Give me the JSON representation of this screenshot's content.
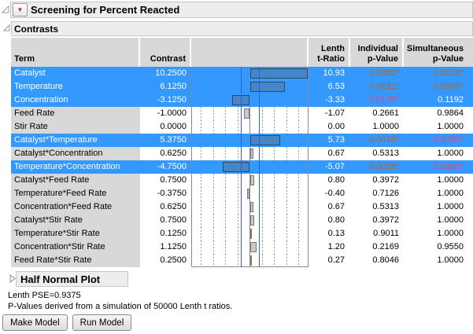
{
  "report": {
    "title": "Screening for Percent Reacted",
    "contrasts_section_title": "Contrasts",
    "half_normal_section_title": "Half Normal Plot"
  },
  "colors": {
    "selection_blue": "#3399ff",
    "bar_blue": "#4486c8",
    "bar_gray": "#c9c9c9",
    "p_orange": "#b5641c",
    "p_pink": "#f23f6f",
    "ref_line_blue": "#2d5fe0"
  },
  "table": {
    "header": {
      "term": "Term",
      "contrast": "Contrast",
      "lenth_l1": "Lenth",
      "lenth_l2": "t-Ratio",
      "ind_l1": "Individual",
      "ind_l2": "p-Value",
      "sim_l1": "Simultaneous",
      "sim_l2": "p-Value"
    },
    "rows": [
      {
        "term": "Catalyst",
        "contrast": "10.2500",
        "value": 10.25,
        "t_ratio": "10.93",
        "p_individual": "0.0002*",
        "p_individual_color": "orange",
        "p_simultaneous": "0.0014*",
        "p_simultaneous_color": "orange",
        "selected": true
      },
      {
        "term": "Temperature",
        "contrast": "6.1250",
        "value": 6.125,
        "t_ratio": "6.53",
        "p_individual": "0.0011*",
        "p_individual_color": "orange",
        "p_simultaneous": "0.0095*",
        "p_simultaneous_color": "orange",
        "selected": true
      },
      {
        "term": "Concentration",
        "contrast": "-3.1250",
        "value": -3.125,
        "t_ratio": "-3.33",
        "p_individual": "0.0138*",
        "p_individual_color": "pink",
        "p_simultaneous": "0.1192",
        "selected": true
      },
      {
        "term": "Feed Rate",
        "contrast": "-1.0000",
        "value": -1.0,
        "t_ratio": "-1.07",
        "p_individual": "0.2661",
        "p_simultaneous": "0.9864",
        "selected": false
      },
      {
        "term": "Stir Rate",
        "contrast": "0.0000",
        "value": 0.0,
        "t_ratio": "0.00",
        "p_individual": "1.0000",
        "p_simultaneous": "1.0000",
        "selected": false
      },
      {
        "term": "Catalyst*Temperature",
        "contrast": "5.3750",
        "value": 5.375,
        "t_ratio": "5.73",
        "p_individual": "0.0018*",
        "p_individual_color": "orange",
        "p_simultaneous": "0.0160*",
        "p_simultaneous_color": "pink",
        "selected": true
      },
      {
        "term": "Catalyst*Concentration",
        "contrast": "0.6250",
        "value": 0.625,
        "t_ratio": "0.67",
        "p_individual": "0.5313",
        "p_simultaneous": "1.0000",
        "selected": false
      },
      {
        "term": "Temperature*Concentration",
        "contrast": "-4.7500",
        "value": -4.75,
        "t_ratio": "-5.07",
        "p_individual": "0.0028*",
        "p_individual_color": "orange",
        "p_simultaneous": "0.0260*",
        "p_simultaneous_color": "pink",
        "selected": true
      },
      {
        "term": "Catalyst*Feed Rate",
        "contrast": "0.7500",
        "value": 0.75,
        "t_ratio": "0.80",
        "p_individual": "0.3972",
        "p_simultaneous": "1.0000",
        "selected": false
      },
      {
        "term": "Temperature*Feed Rate",
        "contrast": "-0.3750",
        "value": -0.375,
        "t_ratio": "-0.40",
        "p_individual": "0.7126",
        "p_simultaneous": "1.0000",
        "selected": false
      },
      {
        "term": "Concentration*Feed Rate",
        "contrast": "0.6250",
        "value": 0.625,
        "t_ratio": "0.67",
        "p_individual": "0.5313",
        "p_simultaneous": "1.0000",
        "selected": false
      },
      {
        "term": "Catalyst*Stir Rate",
        "contrast": "0.7500",
        "value": 0.75,
        "t_ratio": "0.80",
        "p_individual": "0.3972",
        "p_simultaneous": "1.0000",
        "selected": false
      },
      {
        "term": "Temperature*Stir Rate",
        "contrast": "0.1250",
        "value": 0.125,
        "t_ratio": "0.13",
        "p_individual": "0.9011",
        "p_simultaneous": "1.0000",
        "selected": false
      },
      {
        "term": "Concentration*Stir Rate",
        "contrast": "1.1250",
        "value": 1.125,
        "t_ratio": "1.20",
        "p_individual": "0.2169",
        "p_simultaneous": "0.9550",
        "selected": false
      },
      {
        "term": "Feed Rate*Stir Rate",
        "contrast": "0.2500",
        "value": 0.25,
        "t_ratio": "0.27",
        "p_individual": "0.8046",
        "p_simultaneous": "1.0000",
        "selected": false
      }
    ]
  },
  "chart_data": {
    "type": "bar",
    "orientation": "horizontal",
    "categories": [
      "Catalyst",
      "Temperature",
      "Concentration",
      "Feed Rate",
      "Stir Rate",
      "Catalyst*Temperature",
      "Catalyst*Concentration",
      "Temperature*Concentration",
      "Catalyst*Feed Rate",
      "Temperature*Feed Rate",
      "Concentration*Feed Rate",
      "Catalyst*Stir Rate",
      "Temperature*Stir Rate",
      "Concentration*Stir Rate",
      "Feed Rate*Stir Rate"
    ],
    "values": [
      10.25,
      6.125,
      -3.125,
      -1.0,
      0.0,
      5.375,
      0.625,
      -4.75,
      0.75,
      -0.375,
      0.625,
      0.75,
      0.125,
      1.125,
      0.25
    ],
    "highlighted": [
      true,
      true,
      true,
      false,
      false,
      true,
      false,
      true,
      false,
      false,
      false,
      false,
      false,
      false,
      false
    ],
    "title": "",
    "xlabel": "Contrast",
    "notes": "zero axis centered, dashed gridlines, blue reference lines at approx ±1.6"
  },
  "footer": {
    "lenth_pse": "Lenth PSE=0.9375",
    "simulation_note": "P-Values derived from a simulation of 50000 Lenth t ratios.",
    "make_model_label": "Make Model",
    "run_model_label": "Run Model"
  }
}
